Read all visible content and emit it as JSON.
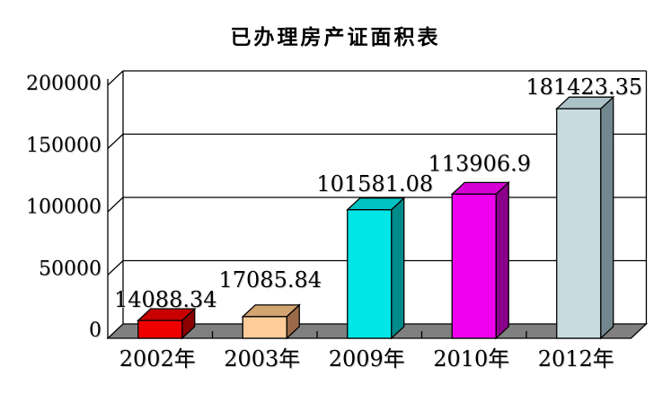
{
  "page": {
    "background_color": "#FFFFFF"
  },
  "chart_data": {
    "type": "bar",
    "subtype": "3d-column",
    "title": "已办理房产证面积表",
    "categories": [
      "2002年",
      "2003年",
      "2009年",
      "2010年",
      "2012年"
    ],
    "values": [
      14088.34,
      17085.84,
      101581.08,
      113906.9,
      181423.35
    ],
    "data_labels": [
      "14088.34",
      "17085.84",
      "101581.08",
      "113906.9",
      "181423.35"
    ],
    "xlabel": "",
    "ylabel": "",
    "ylim": [
      0,
      200000
    ],
    "y_tick_step": 50000,
    "y_tick_labels": [
      "0",
      "50000",
      "100000",
      "150000",
      "200000"
    ],
    "grid": true,
    "legend_position": "none",
    "bar_colors": [
      {
        "name": "red",
        "front": "#EE0000",
        "top": "#C80000",
        "side": "#8B0000"
      },
      {
        "name": "peach",
        "front": "#FFCC99",
        "top": "#D2A470",
        "side": "#9A6A48"
      },
      {
        "name": "cyan",
        "front": "#00E5E5",
        "top": "#00C4C4",
        "side": "#008B8B"
      },
      {
        "name": "magenta",
        "front": "#EE00EE",
        "top": "#D400D4",
        "side": "#8B008B"
      },
      {
        "name": "pale-blue",
        "front": "#C8DBDE",
        "top": "#ABC2C6",
        "side": "#72888E"
      }
    ],
    "floor_color": "#808080",
    "axis_color": "#000000",
    "text_color": "#000000"
  }
}
